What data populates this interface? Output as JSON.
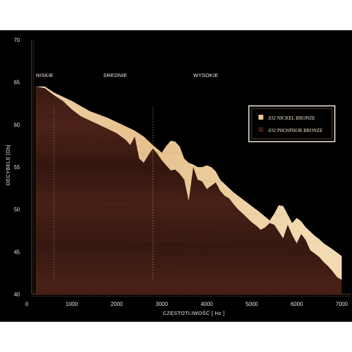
{
  "chart_data": {
    "type": "area",
    "title": "",
    "xlabel": "CZĘSTOTLIWOŚĆ [ Hz ]",
    "ylabel": "DECYBELE [Db]",
    "xlim": [
      0,
      7000
    ],
    "ylim": [
      40,
      70
    ],
    "xticks": [
      0,
      1000,
      2000,
      3000,
      4000,
      5000,
      6000,
      7000
    ],
    "yticks": [
      40,
      45,
      50,
      55,
      60,
      65,
      70
    ],
    "grid": false,
    "legend_position": "top-right",
    "bands": [
      {
        "label": "NISKIE",
        "x": 200
      },
      {
        "label": "SREDNIE",
        "x": 1700
      },
      {
        "label": "WYSOKIE",
        "x": 3700
      }
    ],
    "dividers": [
      600,
      2800
    ],
    "series": [
      {
        "name": ".032 NICKEL BRONZE",
        "color": "#e8c795",
        "x": [
          200,
          400,
          600,
          800,
          1000,
          1200,
          1400,
          1600,
          1800,
          2000,
          2200,
          2400,
          2600,
          2800,
          3000,
          3100,
          3200,
          3300,
          3400,
          3500,
          3600,
          3700,
          3800,
          3900,
          4000,
          4100,
          4200,
          4300,
          4400,
          4600,
          4800,
          5000,
          5200,
          5400,
          5500,
          5600,
          5700,
          5800,
          5900,
          6000,
          6100,
          6200,
          6300,
          6400,
          6500,
          6600,
          6800,
          7000
        ],
        "values": [
          64.5,
          64.5,
          63.8,
          63.3,
          62.8,
          62.2,
          61.6,
          61.2,
          60.8,
          60.3,
          59.8,
          59.3,
          58.6,
          57.6,
          56.7,
          57.5,
          58.1,
          58.0,
          57.4,
          56.0,
          55.5,
          55.3,
          55.0,
          55.0,
          55.2,
          55.0,
          54.5,
          53.5,
          53.0,
          52.0,
          51.2,
          50.4,
          49.6,
          48.7,
          49.5,
          50.5,
          50.4,
          49.4,
          48.4,
          49.0,
          48.6,
          47.9,
          47.4,
          46.9,
          46.5,
          46.0,
          45.3,
          44.5
        ]
      },
      {
        "name": ".032 PHOSPHOR BRONZE",
        "color": "#3d1810",
        "x": [
          200,
          400,
          600,
          800,
          1000,
          1200,
          1400,
          1600,
          1800,
          2000,
          2200,
          2300,
          2400,
          2500,
          2600,
          2700,
          2800,
          2900,
          3000,
          3100,
          3200,
          3300,
          3400,
          3500,
          3600,
          3700,
          3800,
          3900,
          4000,
          4100,
          4200,
          4300,
          4400,
          4500,
          4600,
          4700,
          4800,
          5000,
          5100,
          5200,
          5300,
          5400,
          5500,
          5600,
          5700,
          5800,
          5900,
          6000,
          6100,
          6200,
          6300,
          6400,
          6500,
          6600,
          6700,
          6800,
          6900,
          7000
        ],
        "values": [
          64.5,
          64.3,
          63.5,
          62.8,
          61.8,
          61.0,
          60.5,
          60.0,
          59.5,
          59.0,
          58.2,
          57.6,
          58.6,
          56.0,
          55.5,
          56.4,
          57.2,
          56.6,
          55.8,
          55.2,
          54.6,
          54.7,
          54.2,
          53.5,
          51.0,
          55.0,
          53.5,
          53.3,
          52.4,
          52.8,
          53.2,
          52.2,
          51.6,
          51.3,
          50.6,
          50.0,
          49.5,
          48.5,
          48.1,
          47.6,
          47.9,
          48.4,
          48.2,
          47.4,
          46.6,
          48.2,
          47.0,
          46.0,
          47.1,
          46.4,
          45.2,
          44.8,
          44.4,
          43.8,
          43.3,
          42.7,
          42.0,
          41.7
        ]
      }
    ]
  }
}
